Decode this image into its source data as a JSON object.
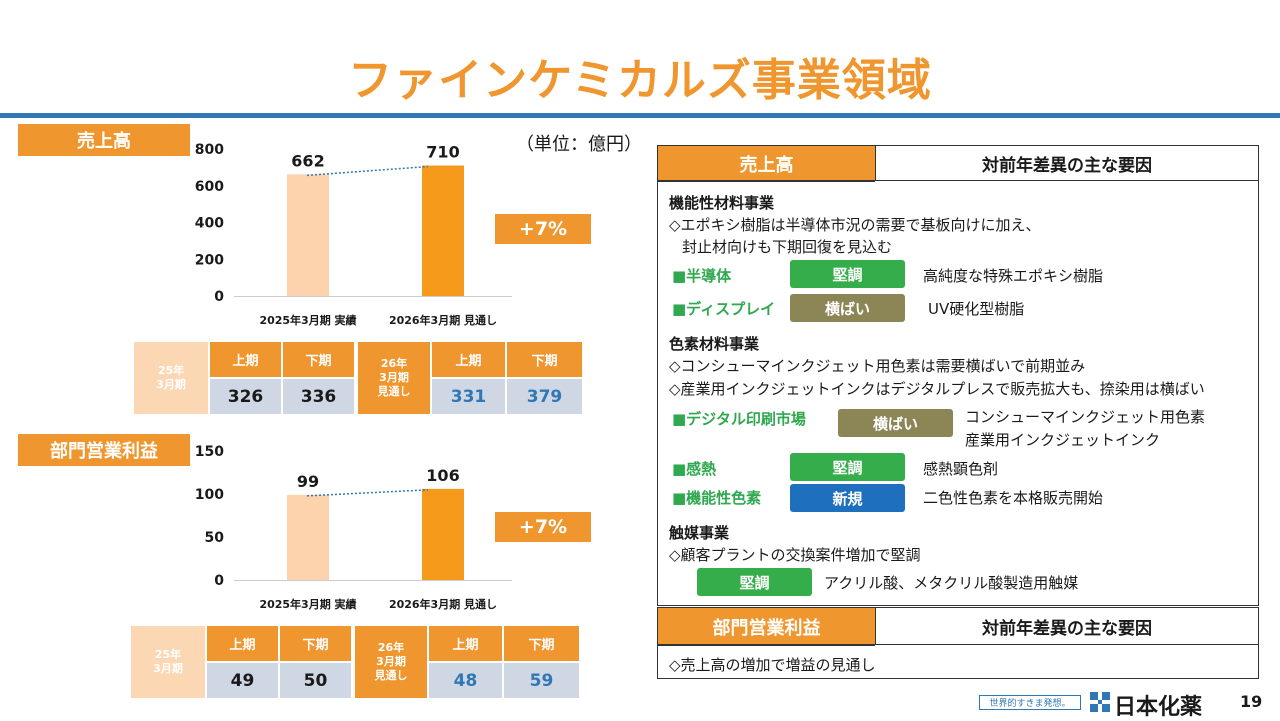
{
  "page": {
    "title": "ファインケミカルズ事業領域",
    "unit": "（単位：億円）",
    "page_number": "19",
    "logo_text": "日本化薬",
    "logo_tagline": "世界的すきま発想。"
  },
  "sales_chart": {
    "label": "売上高",
    "change": "+7%",
    "table": {
      "left_period": "25年\n3月期",
      "right_period": "26年\n3月期\n見通し",
      "h1": "上期",
      "h2": "下期",
      "v1": "326",
      "v2": "336",
      "v3": "331",
      "v4": "379"
    }
  },
  "profit_chart": {
    "label": "部門営業利益",
    "change": "+7%",
    "table": {
      "left_period": "25年\n3月期",
      "right_period": "26年\n3月期\n見通し",
      "h1": "上期",
      "h2": "下期",
      "v1": "49",
      "v2": "50",
      "v3": "48",
      "v4": "59"
    }
  },
  "chart_data": [
    {
      "type": "bar",
      "categories": [
        "2025年3月期 実績",
        "2026年3月期 見通し"
      ],
      "values": [
        662,
        710
      ],
      "ylim": [
        0,
        800
      ],
      "yticks": [
        0,
        200,
        400,
        600,
        800
      ],
      "colors": [
        "#fcd3ac",
        "#f59a1b"
      ]
    },
    {
      "type": "bar",
      "categories": [
        "2025年3月期 実績",
        "2026年3月期 見通し"
      ],
      "values": [
        99,
        106
      ],
      "ylim": [
        0,
        150
      ],
      "yticks": [
        0,
        50,
        100,
        150
      ],
      "colors": [
        "#fcd3ac",
        "#f59a1b"
      ]
    }
  ],
  "right_panel": {
    "sales_header": "売上高",
    "factor_header": "対前年差異の主な要因",
    "sec1_title": "機能性材料事業",
    "sec1_line1": "◇エポキシ樹脂は半導体市況の需要で基板向けに加え、",
    "sec1_line2": "封止材向けも下期回復を見込む",
    "sec1_cat1": "■半導体",
    "sec1_badge1": "堅調",
    "sec1_desc1": "高純度な特殊エポキシ樹脂",
    "sec1_cat2": "■ディスプレイ",
    "sec1_badge2": "横ばい",
    "sec1_desc2": "UV硬化型樹脂",
    "sec2_title": "色素材料事業",
    "sec2_line1": "◇コンシューマインクジェット用色素は需要横ばいで前期並み",
    "sec2_line2": "◇産業用インクジェットインクはデジタルプレスで販売拡大も、捺染用は横ばい",
    "sec2_cat1": "■デジタル印刷市場",
    "sec2_badge1": "横ばい",
    "sec2_desc1a": "コンシューマインクジェット用色素",
    "sec2_desc1b": "産業用インクジェットインク",
    "sec2_cat2": "■感熱",
    "sec2_badge2": "堅調",
    "sec2_desc2": "感熱顕色剤",
    "sec2_cat3": "■機能性色素",
    "sec2_badge3": "新規",
    "sec2_desc3": "二色性色素を本格販売開始",
    "sec3_title": "触媒事業",
    "sec3_line1": "◇顧客プラントの交換案件増加で堅調",
    "sec3_badge1": "堅調",
    "sec3_desc1": "アクリル酸、メタクリル酸製造用触媒",
    "profit_header": "部門営業利益",
    "profit_factor_header": "対前年差異の主な要因",
    "profit_line": "◇売上高の増加で増益の見通し"
  }
}
